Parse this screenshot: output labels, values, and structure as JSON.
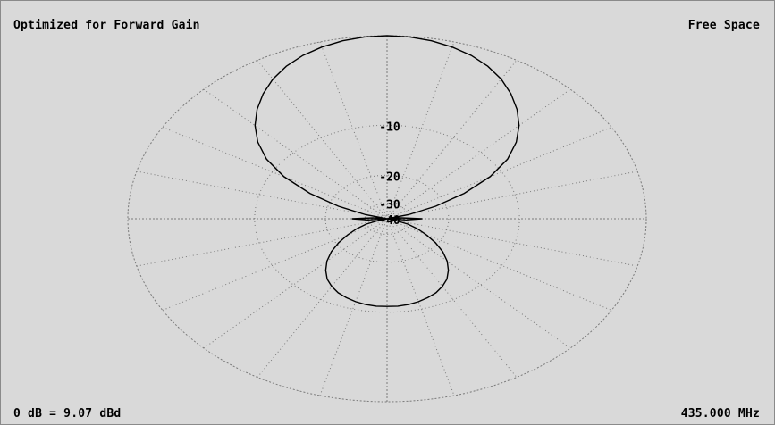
{
  "title_left": "Optimized for Forward Gain",
  "title_right": "Free Space",
  "footer_left": "0 dB = 9.07 dBd",
  "footer_right": "435.000 MHz",
  "chart_data": {
    "type": "polar",
    "reference_db": "0 dB = 9.07 dBd",
    "frequency": "435.000 MHz",
    "ring_labels": [
      "-10",
      "-20",
      "-30",
      "-40"
    ],
    "ring_values_db": [
      0,
      -10,
      -20,
      -30,
      -40
    ],
    "radial_spokes_deg": 15,
    "pattern": {
      "angle_deg": [
        0,
        5,
        10,
        15,
        20,
        25,
        30,
        35,
        40,
        45,
        50,
        55,
        60,
        65,
        70,
        75,
        80,
        85,
        90,
        95,
        100,
        105,
        110,
        115,
        120,
        125,
        130,
        135,
        140,
        145,
        150,
        155,
        160,
        165,
        170,
        175,
        180
      ],
      "gain_db": [
        0,
        -0.05,
        -0.2,
        -0.45,
        -0.8,
        -1.3,
        -1.95,
        -2.8,
        -3.8,
        -5.0,
        -6.5,
        -8.5,
        -11.5,
        -16.0,
        -22.0,
        -30.0,
        -40.0,
        -33.0,
        -26.0,
        -31.0,
        -40.0,
        -36.0,
        -30.0,
        -26.5,
        -23.5,
        -20.5,
        -18.0,
        -16.0,
        -14.5,
        -13.3,
        -12.5,
        -11.9,
        -11.5,
        -11.2,
        -11.0,
        -10.9,
        -10.9
      ]
    }
  }
}
